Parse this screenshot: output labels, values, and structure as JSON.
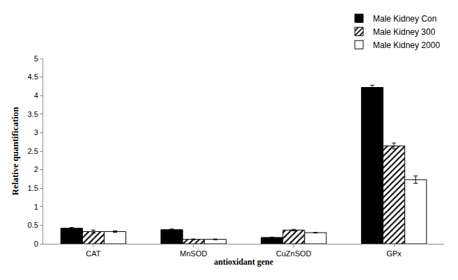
{
  "chart_data": {
    "type": "bar",
    "x_label": "antioxidant gene",
    "y_label": "Relative quantification",
    "categories": [
      "CAT",
      "MnSOD",
      "CuZnSOD",
      "GPx"
    ],
    "series": [
      {
        "name": "Male Kidney Con",
        "color": "#000000",
        "marker": "solid",
        "values": [
          0.42,
          0.38,
          0.17,
          4.22
        ],
        "errors": [
          0.02,
          0.02,
          0.01,
          0.06
        ]
      },
      {
        "name": "Male Kidney 300",
        "color": "#000000",
        "marker": "hatched",
        "values": [
          0.33,
          0.12,
          0.37,
          2.64
        ],
        "errors": [
          0.04,
          0.01,
          0.02,
          0.08
        ]
      },
      {
        "name": "Male Kidney 2000",
        "color": "#ffffff",
        "marker": "solid",
        "values": [
          0.33,
          0.12,
          0.3,
          1.73
        ],
        "errors": [
          0.02,
          0.01,
          0.01,
          0.1
        ]
      }
    ],
    "ylim": [
      0,
      5
    ],
    "yticks": [
      0,
      0.5,
      1,
      1.5,
      2,
      2.5,
      3,
      3.5,
      4,
      4.5,
      5
    ],
    "grid": false,
    "legend": "top right"
  }
}
